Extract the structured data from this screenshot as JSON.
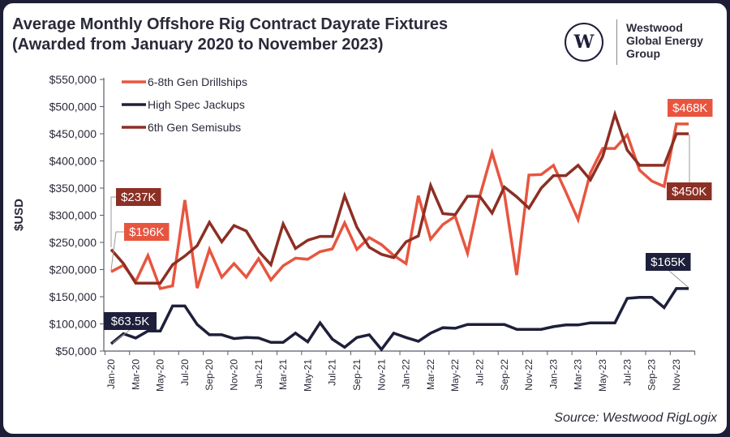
{
  "title_line1": "Average Monthly Offshore Rig Contract Dayrate Fixtures",
  "title_line2": "(Awarded from January 2020 to November 2023)",
  "logo": {
    "mark": "W",
    "name": "Westwood Global Energy Group",
    "line1": "Westwood",
    "line2": "Global Energy",
    "line3": "Group"
  },
  "source": "Source: Westwood RigLogix",
  "chart_data": {
    "type": "line",
    "ylabel": "$USD",
    "xlabel": "",
    "ylim": [
      50000,
      550000
    ],
    "yticks": [
      50000,
      100000,
      150000,
      200000,
      250000,
      300000,
      350000,
      400000,
      450000,
      500000,
      550000
    ],
    "ytick_labels": [
      "$50,000",
      "$100,000",
      "$150,000",
      "$200,000",
      "$250,000",
      "$300,000",
      "$350,000",
      "$400,000",
      "$450,000",
      "$500,000",
      "$550,000"
    ],
    "grid": false,
    "legend_placement": "top-left",
    "categories": [
      "Jan-20",
      "Feb-20",
      "Mar-20",
      "Apr-20",
      "May-20",
      "Jun-20",
      "Jul-20",
      "Aug-20",
      "Sep-20",
      "Oct-20",
      "Nov-20",
      "Dec-20",
      "Jan-21",
      "Feb-21",
      "Mar-21",
      "Apr-21",
      "May-21",
      "Jun-21",
      "Jul-21",
      "Aug-21",
      "Sep-21",
      "Oct-21",
      "Nov-21",
      "Dec-21",
      "Jan-22",
      "Feb-22",
      "Mar-22",
      "Apr-22",
      "May-22",
      "Jun-22",
      "Jul-22",
      "Aug-22",
      "Sep-22",
      "Oct-22",
      "Nov-22",
      "Dec-22",
      "Jan-23",
      "Feb-23",
      "Mar-23",
      "Apr-23",
      "May-23",
      "Jun-23",
      "Jul-23",
      "Aug-23",
      "Sep-23",
      "Oct-23",
      "Nov-23",
      "Dec-23"
    ],
    "tick_labels": [
      "Jan-20",
      "Mar-20",
      "May-20",
      "Jul-20",
      "Sep-20",
      "Nov-20",
      "Jan-21",
      "Mar-21",
      "May-21",
      "Jul-21",
      "Sep-21",
      "Nov-21",
      "Jan-22",
      "Mar-22",
      "May-22",
      "Jul-22",
      "Sep-22",
      "Nov-22",
      "Jan-23",
      "Mar-23",
      "May-23",
      "Jul-23",
      "Sep-23",
      "Nov-23"
    ],
    "series": [
      {
        "name": "6-8th Gen Drillships",
        "color": "#e8553f",
        "values": [
          196000,
          208000,
          178000,
          226000,
          165000,
          170000,
          328000,
          166000,
          237000,
          186000,
          211000,
          186000,
          220000,
          181000,
          207000,
          221000,
          219000,
          233000,
          238000,
          286000,
          237000,
          259000,
          246000,
          226000,
          211000,
          336000,
          256000,
          283000,
          298000,
          230000,
          335000,
          415000,
          340000,
          190000,
          374000,
          375000,
          392000,
          343000,
          292000,
          378000,
          423000,
          423000,
          448000,
          383000,
          363000,
          353000,
          468000,
          468000
        ]
      },
      {
        "name": "High Spec Jackups",
        "color": "#1e1f3a",
        "values": [
          63500,
          82000,
          74000,
          87000,
          87000,
          133000,
          133000,
          99000,
          80000,
          80000,
          73000,
          75000,
          74000,
          66000,
          66000,
          83000,
          67000,
          102000,
          72000,
          57000,
          75000,
          80000,
          53000,
          83000,
          75000,
          68000,
          83000,
          93000,
          92000,
          99000,
          99000,
          99000,
          99000,
          90000,
          90000,
          90000,
          95000,
          98000,
          98000,
          102000,
          102000,
          102000,
          147000,
          149000,
          149000,
          130000,
          165000,
          165000
        ]
      },
      {
        "name": "6th Gen Semisubs",
        "color": "#8c2f24",
        "values": [
          237000,
          211000,
          175000,
          175000,
          175000,
          209000,
          225000,
          244000,
          287000,
          251000,
          281000,
          271000,
          234000,
          209000,
          284000,
          239000,
          254000,
          261000,
          261000,
          336000,
          278000,
          241000,
          228000,
          222000,
          251000,
          262000,
          355000,
          303000,
          301000,
          335000,
          335000,
          304000,
          352000,
          334000,
          313000,
          350000,
          373000,
          373000,
          392000,
          365000,
          408000,
          486000,
          420000,
          392000,
          392000,
          392000,
          450000,
          450000
        ]
      }
    ],
    "annotations": [
      {
        "text": "$237K",
        "series": "6th Gen Semisubs",
        "category": "Jan-20",
        "color": "#8c2f24"
      },
      {
        "text": "$196K",
        "series": "6-8th Gen Drillships",
        "category": "Jan-20",
        "color": "#e8553f"
      },
      {
        "text": "$63.5K",
        "series": "High Spec Jackups",
        "category": "Jan-20",
        "color": "#1e1f3a"
      },
      {
        "text": "$468K",
        "series": "6-8th Gen Drillships",
        "category": "Dec-23",
        "color": "#e8553f"
      },
      {
        "text": "$450K",
        "series": "6th Gen Semisubs",
        "category": "Dec-23",
        "color": "#8c2f24"
      },
      {
        "text": "$165K",
        "series": "High Spec Jackups",
        "category": "Dec-23",
        "color": "#1e1f3a"
      }
    ]
  }
}
